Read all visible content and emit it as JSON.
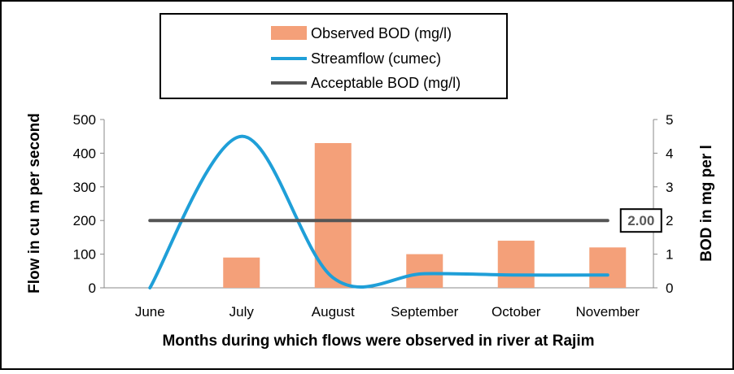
{
  "chart_data": {
    "type": "bar",
    "categories": [
      "June",
      "July",
      "August",
      "September",
      "October",
      "November"
    ],
    "xlabel": "Months during which flows were observed in river at Rajim",
    "ylabel": "Flow in cu m per second",
    "y2label": "BOD in mg per l",
    "ylim": [
      0,
      500
    ],
    "y2lim": [
      0,
      5
    ],
    "yticks": [
      "0",
      "100",
      "200",
      "300",
      "400",
      "500"
    ],
    "y2ticks": [
      "0",
      "1",
      "2",
      "3",
      "4",
      "5"
    ],
    "series": [
      {
        "name": "Observed BOD (mg/l)",
        "type": "bar",
        "axis": "right",
        "color": "#F4A079",
        "values": [
          null,
          0.9,
          4.3,
          1.0,
          1.4,
          1.2
        ]
      },
      {
        "name": "Streamflow (cumec)",
        "type": "line",
        "axis": "left",
        "color": "#1F9FD8",
        "values": [
          0,
          450,
          30,
          42,
          38,
          38
        ]
      },
      {
        "name": "Acceptable BOD (mg/l)",
        "type": "line",
        "axis": "right",
        "color": "#555555",
        "values": [
          2,
          2,
          2,
          2,
          2,
          2
        ]
      }
    ],
    "annotation": {
      "text": "2.00",
      "series": "Acceptable BOD (mg/l)",
      "category": "November"
    },
    "legend_position": "top",
    "grid": false
  }
}
